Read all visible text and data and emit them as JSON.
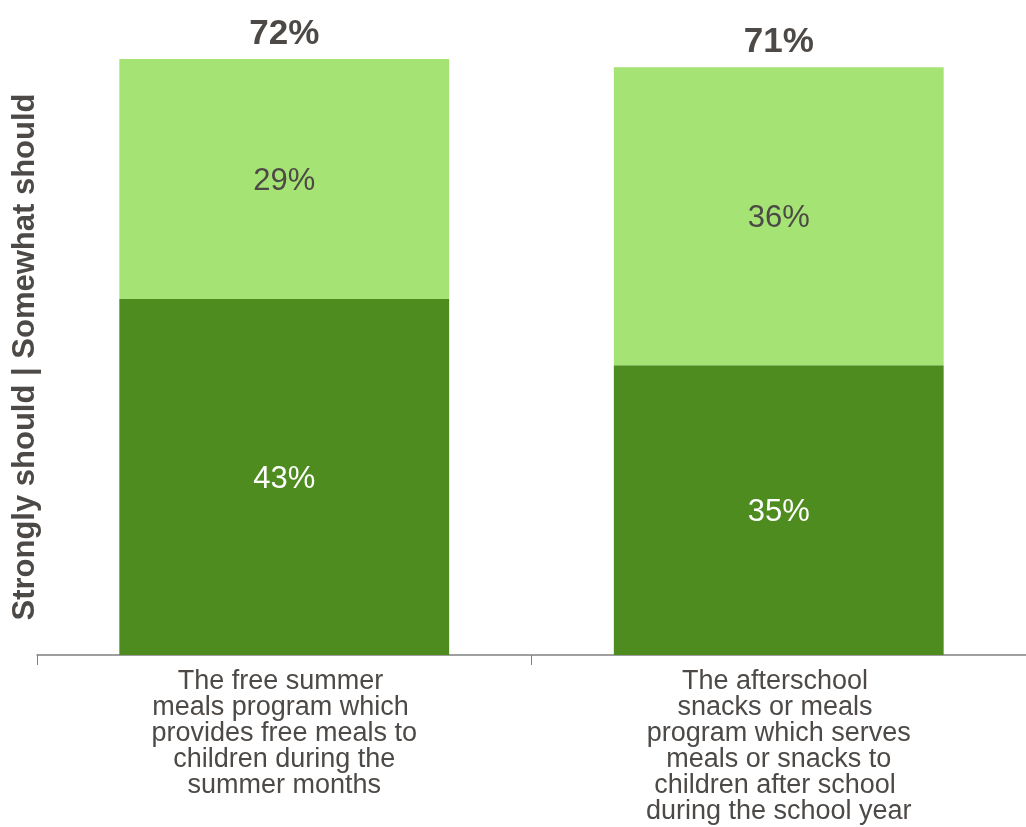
{
  "chart_data": {
    "type": "bar",
    "stacked": true,
    "ylabel": "Strongly should | Somewhat should",
    "categories": [
      "The free summer meals program which provides free meals to children during the summer months",
      "The afterschool snacks or meals program which serves meals or snacks to children after school during the school year"
    ],
    "series": [
      {
        "color": "#4f8c1f",
        "values": [
          43,
          35
        ],
        "value_labels": [
          "43%",
          "35%"
        ]
      },
      {
        "color": "#a5e374",
        "values": [
          29,
          36
        ],
        "value_labels": [
          "29%",
          "36%"
        ]
      }
    ],
    "totals": [
      "72%",
      "71%"
    ],
    "tick_labels": "x"
  }
}
